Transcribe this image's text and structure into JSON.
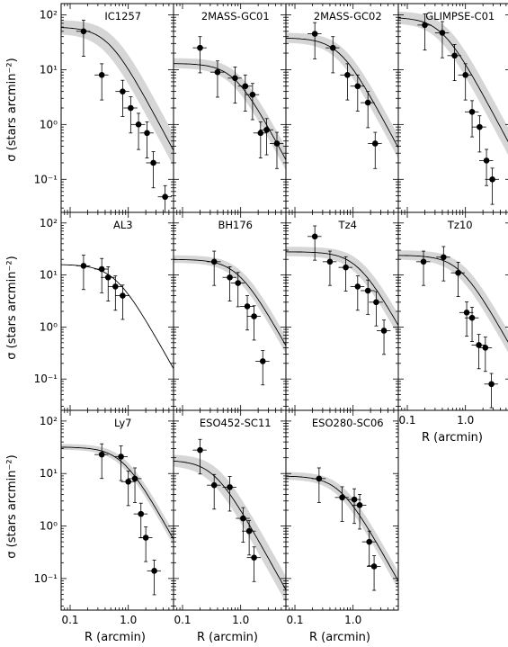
{
  "labels": {
    "ylabel": "σ (stars arcmin⁻²)",
    "xlabel": "R (arcmin)",
    "y_ticks": [
      "10²",
      "10¹",
      "10⁰",
      "10⁻¹"
    ],
    "x_ticks": [
      "0.1",
      "1.0"
    ]
  },
  "chart_data": [
    {
      "type": "scatter",
      "title": "IC1257",
      "xlim": [
        0.07,
        6
      ],
      "ylim": [
        0.025,
        160
      ],
      "log_x": true,
      "log_y": true,
      "points": [
        [
          0.17,
          50
        ],
        [
          0.35,
          8
        ],
        [
          0.8,
          4
        ],
        [
          1.1,
          2
        ],
        [
          1.5,
          1
        ],
        [
          2.1,
          0.7
        ],
        [
          2.7,
          0.2
        ],
        [
          4.3,
          0.048
        ]
      ],
      "model": {
        "sigma0": 60,
        "rc": 0.45,
        "band": 0.35
      }
    },
    {
      "type": "scatter",
      "title": "2MASS-GC01",
      "xlim": [
        0.07,
        6
      ],
      "ylim": [
        0.025,
        160
      ],
      "log_x": true,
      "log_y": true,
      "points": [
        [
          0.2,
          25
        ],
        [
          0.4,
          9
        ],
        [
          0.8,
          7
        ],
        [
          1.2,
          5
        ],
        [
          1.6,
          3.5
        ],
        [
          2.2,
          0.7
        ],
        [
          2.8,
          0.8
        ],
        [
          4.2,
          0.45
        ]
      ],
      "model": {
        "sigma0": 13,
        "rc": 0.8,
        "band": 0.25
      }
    },
    {
      "type": "scatter",
      "title": "2MASS-GC02",
      "xlim": [
        0.07,
        6
      ],
      "ylim": [
        0.025,
        160
      ],
      "log_x": true,
      "log_y": true,
      "points": [
        [
          0.22,
          45
        ],
        [
          0.45,
          25
        ],
        [
          0.8,
          8
        ],
        [
          1.2,
          5
        ],
        [
          1.8,
          2.5
        ],
        [
          2.4,
          0.45
        ]
      ],
      "model": {
        "sigma0": 38,
        "rc": 0.6,
        "band": 0.25
      }
    },
    {
      "type": "scatter",
      "title": "GLIMPSE-C01",
      "xlim": [
        0.07,
        6
      ],
      "ylim": [
        0.025,
        160
      ],
      "log_x": true,
      "log_y": true,
      "points": [
        [
          0.2,
          65
        ],
        [
          0.4,
          47
        ],
        [
          0.65,
          18
        ],
        [
          1.0,
          8
        ],
        [
          1.3,
          1.7
        ],
        [
          1.75,
          0.9
        ],
        [
          2.3,
          0.22
        ],
        [
          2.9,
          0.1
        ]
      ],
      "model": {
        "sigma0": 90,
        "rc": 0.4,
        "band": 0.3
      }
    },
    {
      "type": "scatter",
      "title": "AL3",
      "xlim": [
        0.07,
        6
      ],
      "ylim": [
        0.025,
        160
      ],
      "log_x": true,
      "log_y": true,
      "points": [
        [
          0.17,
          15
        ],
        [
          0.35,
          13
        ],
        [
          0.45,
          9
        ],
        [
          0.6,
          6
        ],
        [
          0.8,
          4
        ]
      ],
      "model": {
        "sigma0": 16,
        "rc": 0.6,
        "band": 0.0
      }
    },
    {
      "type": "scatter",
      "title": "BH176",
      "xlim": [
        0.07,
        6
      ],
      "ylim": [
        0.025,
        160
      ],
      "log_x": true,
      "log_y": true,
      "points": [
        [
          0.35,
          18
        ],
        [
          0.65,
          9
        ],
        [
          0.9,
          7
        ],
        [
          1.3,
          2.5
        ],
        [
          1.7,
          1.6
        ],
        [
          2.4,
          0.22
        ]
      ],
      "model": {
        "sigma0": 20,
        "rc": 0.9,
        "band": 0.2
      }
    },
    {
      "type": "scatter",
      "title": "Tz4",
      "xlim": [
        0.07,
        6
      ],
      "ylim": [
        0.025,
        160
      ],
      "log_x": true,
      "log_y": true,
      "points": [
        [
          0.22,
          55
        ],
        [
          0.4,
          18
        ],
        [
          0.75,
          14
        ],
        [
          1.2,
          6
        ],
        [
          1.8,
          5
        ],
        [
          2.5,
          3
        ],
        [
          3.4,
          0.85
        ]
      ],
      "model": {
        "sigma0": 28,
        "rc": 1.2,
        "band": 0.25
      }
    },
    {
      "type": "scatter",
      "title": "Tz10",
      "xlim": [
        0.07,
        6
      ],
      "ylim": [
        0.025,
        160
      ],
      "log_x": true,
      "log_y": true,
      "points": [
        [
          0.19,
          18
        ],
        [
          0.42,
          22
        ],
        [
          0.75,
          11
        ],
        [
          1.05,
          1.9
        ],
        [
          1.3,
          1.5
        ],
        [
          1.7,
          0.45
        ],
        [
          2.2,
          0.4
        ],
        [
          2.8,
          0.08
        ]
      ],
      "model": {
        "sigma0": 24,
        "rc": 0.8,
        "band": 0.25
      }
    },
    {
      "type": "scatter",
      "title": "Ly7",
      "xlim": [
        0.07,
        6
      ],
      "ylim": [
        0.025,
        160
      ],
      "log_x": true,
      "log_y": true,
      "points": [
        [
          0.35,
          23
        ],
        [
          0.75,
          21
        ],
        [
          1.0,
          7
        ],
        [
          1.3,
          8
        ],
        [
          1.65,
          1.7
        ],
        [
          2.0,
          0.6
        ],
        [
          2.8,
          0.14
        ]
      ],
      "model": {
        "sigma0": 32,
        "rc": 0.8,
        "band": 0.15
      }
    },
    {
      "type": "scatter",
      "title": "ESO452-SC11",
      "xlim": [
        0.07,
        6
      ],
      "ylim": [
        0.025,
        160
      ],
      "log_x": true,
      "log_y": true,
      "points": [
        [
          0.2,
          28
        ],
        [
          0.35,
          6
        ],
        [
          0.65,
          5.5
        ],
        [
          1.1,
          1.4
        ],
        [
          1.4,
          0.8
        ],
        [
          1.7,
          0.25
        ]
      ],
      "model": {
        "sigma0": 18,
        "rc": 0.35,
        "band": 0.3
      }
    },
    {
      "type": "scatter",
      "title": "ESO280-SC06",
      "xlim": [
        0.07,
        6
      ],
      "ylim": [
        0.025,
        160
      ],
      "log_x": true,
      "log_y": true,
      "points": [
        [
          0.26,
          8
        ],
        [
          0.65,
          3.5
        ],
        [
          1.05,
          3.2
        ],
        [
          1.3,
          2.5
        ],
        [
          1.9,
          0.5
        ],
        [
          2.3,
          0.17
        ]
      ],
      "model": {
        "sigma0": 9,
        "rc": 0.6,
        "band": 0.2
      }
    }
  ]
}
